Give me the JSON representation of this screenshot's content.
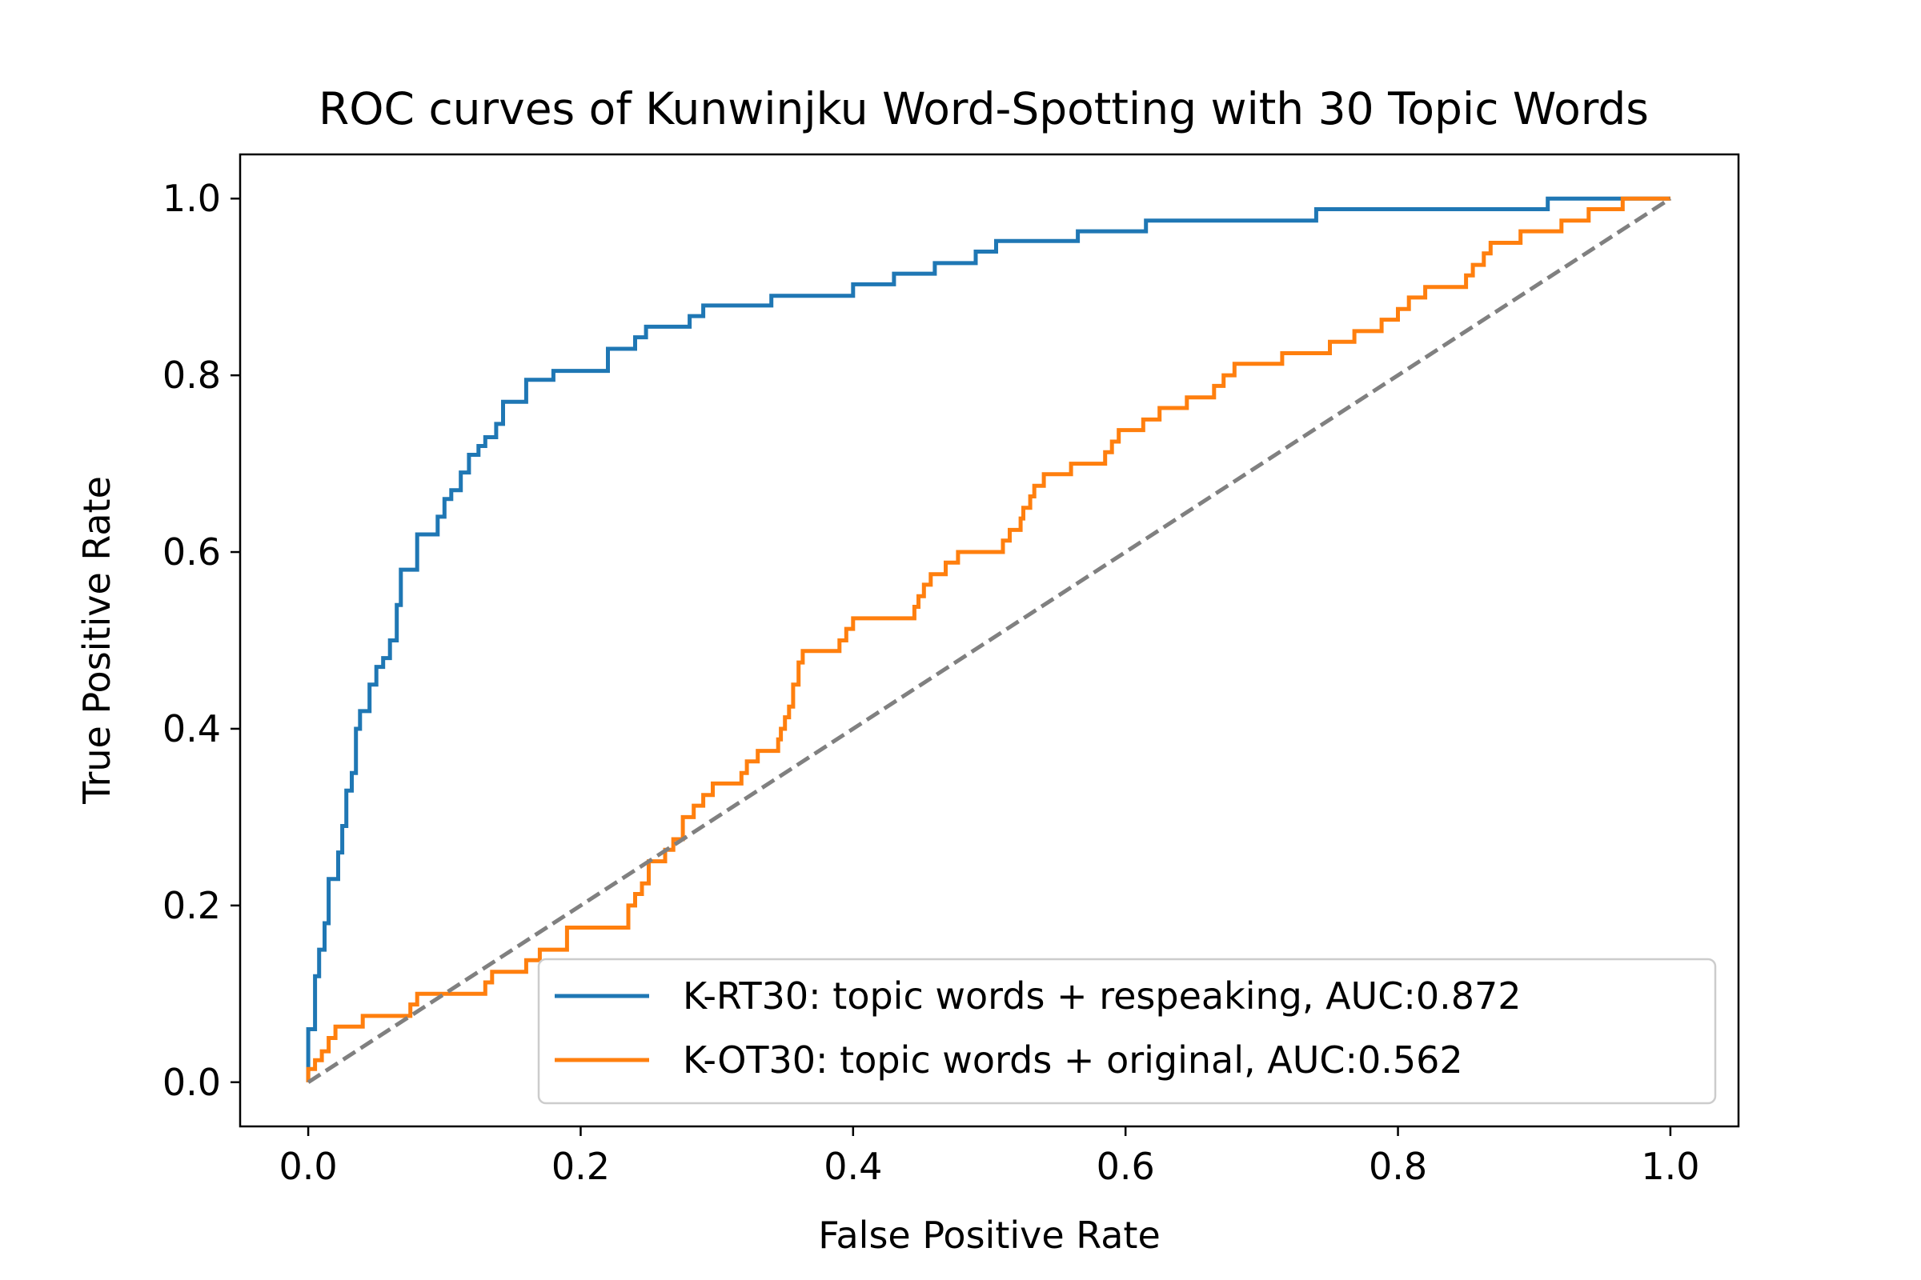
{
  "chart_data": {
    "type": "line",
    "title": "ROC curves of Kunwinjku Word-Spotting with 30 Topic Words",
    "xlabel": "False Positive Rate",
    "ylabel": "True Positive Rate",
    "xlim": [
      -0.05,
      1.05
    ],
    "ylim": [
      -0.05,
      1.05
    ],
    "xticks": [
      0.0,
      0.2,
      0.4,
      0.6,
      0.8,
      1.0
    ],
    "yticks": [
      0.0,
      0.2,
      0.4,
      0.6,
      0.8,
      1.0
    ],
    "xtick_labels": [
      "0.0",
      "0.2",
      "0.4",
      "0.6",
      "0.8",
      "1.0"
    ],
    "ytick_labels": [
      "0.0",
      "0.2",
      "0.4",
      "0.6",
      "0.8",
      "1.0"
    ],
    "grid": false,
    "legend_position": "lower-right",
    "series": [
      {
        "name": "K-RT30: topic words + respeaking, AUC:0.872",
        "color": "#1f77b4",
        "style": "solid",
        "points": [
          [
            0,
            0
          ],
          [
            0,
            0.06
          ],
          [
            0.005,
            0.06
          ],
          [
            0.005,
            0.12
          ],
          [
            0.008,
            0.12
          ],
          [
            0.008,
            0.15
          ],
          [
            0.012,
            0.15
          ],
          [
            0.012,
            0.18
          ],
          [
            0.015,
            0.18
          ],
          [
            0.015,
            0.23
          ],
          [
            0.022,
            0.23
          ],
          [
            0.022,
            0.26
          ],
          [
            0.025,
            0.26
          ],
          [
            0.025,
            0.29
          ],
          [
            0.028,
            0.29
          ],
          [
            0.028,
            0.33
          ],
          [
            0.032,
            0.33
          ],
          [
            0.032,
            0.35
          ],
          [
            0.035,
            0.35
          ],
          [
            0.035,
            0.4
          ],
          [
            0.038,
            0.4
          ],
          [
            0.038,
            0.42
          ],
          [
            0.045,
            0.42
          ],
          [
            0.045,
            0.45
          ],
          [
            0.05,
            0.45
          ],
          [
            0.05,
            0.47
          ],
          [
            0.055,
            0.47
          ],
          [
            0.055,
            0.48
          ],
          [
            0.06,
            0.48
          ],
          [
            0.06,
            0.5
          ],
          [
            0.065,
            0.5
          ],
          [
            0.065,
            0.54
          ],
          [
            0.068,
            0.54
          ],
          [
            0.068,
            0.58
          ],
          [
            0.08,
            0.58
          ],
          [
            0.08,
            0.62
          ],
          [
            0.095,
            0.62
          ],
          [
            0.095,
            0.64
          ],
          [
            0.1,
            0.64
          ],
          [
            0.1,
            0.66
          ],
          [
            0.105,
            0.66
          ],
          [
            0.105,
            0.67
          ],
          [
            0.112,
            0.67
          ],
          [
            0.112,
            0.69
          ],
          [
            0.118,
            0.69
          ],
          [
            0.118,
            0.71
          ],
          [
            0.125,
            0.71
          ],
          [
            0.125,
            0.72
          ],
          [
            0.13,
            0.72
          ],
          [
            0.13,
            0.73
          ],
          [
            0.138,
            0.73
          ],
          [
            0.138,
            0.745
          ],
          [
            0.143,
            0.745
          ],
          [
            0.143,
            0.77
          ],
          [
            0.16,
            0.77
          ],
          [
            0.16,
            0.795
          ],
          [
            0.18,
            0.795
          ],
          [
            0.18,
            0.805
          ],
          [
            0.22,
            0.805
          ],
          [
            0.22,
            0.83
          ],
          [
            0.24,
            0.83
          ],
          [
            0.24,
            0.843
          ],
          [
            0.248,
            0.843
          ],
          [
            0.248,
            0.855
          ],
          [
            0.28,
            0.855
          ],
          [
            0.28,
            0.867
          ],
          [
            0.29,
            0.867
          ],
          [
            0.29,
            0.879
          ],
          [
            0.34,
            0.879
          ],
          [
            0.34,
            0.89
          ],
          [
            0.4,
            0.89
          ],
          [
            0.4,
            0.903
          ],
          [
            0.43,
            0.903
          ],
          [
            0.43,
            0.915
          ],
          [
            0.46,
            0.915
          ],
          [
            0.46,
            0.927
          ],
          [
            0.49,
            0.927
          ],
          [
            0.49,
            0.94
          ],
          [
            0.505,
            0.94
          ],
          [
            0.505,
            0.952
          ],
          [
            0.565,
            0.952
          ],
          [
            0.565,
            0.963
          ],
          [
            0.615,
            0.963
          ],
          [
            0.615,
            0.975
          ],
          [
            0.74,
            0.975
          ],
          [
            0.74,
            0.988
          ],
          [
            0.91,
            0.988
          ],
          [
            0.91,
            1.0
          ],
          [
            1.0,
            1.0
          ]
        ]
      },
      {
        "name": "K-OT30: topic words + original, AUC:0.562",
        "color": "#ff7f0e",
        "style": "solid",
        "points": [
          [
            0,
            0
          ],
          [
            0,
            0.015
          ],
          [
            0.005,
            0.015
          ],
          [
            0.005,
            0.025
          ],
          [
            0.01,
            0.025
          ],
          [
            0.01,
            0.035
          ],
          [
            0.015,
            0.035
          ],
          [
            0.015,
            0.05
          ],
          [
            0.02,
            0.05
          ],
          [
            0.02,
            0.063
          ],
          [
            0.04,
            0.063
          ],
          [
            0.04,
            0.075
          ],
          [
            0.075,
            0.075
          ],
          [
            0.075,
            0.088
          ],
          [
            0.08,
            0.088
          ],
          [
            0.08,
            0.1
          ],
          [
            0.13,
            0.1
          ],
          [
            0.13,
            0.113
          ],
          [
            0.135,
            0.113
          ],
          [
            0.135,
            0.125
          ],
          [
            0.16,
            0.125
          ],
          [
            0.16,
            0.138
          ],
          [
            0.17,
            0.138
          ],
          [
            0.17,
            0.15
          ],
          [
            0.19,
            0.15
          ],
          [
            0.19,
            0.175
          ],
          [
            0.235,
            0.175
          ],
          [
            0.235,
            0.2
          ],
          [
            0.24,
            0.2
          ],
          [
            0.24,
            0.213
          ],
          [
            0.245,
            0.213
          ],
          [
            0.245,
            0.225
          ],
          [
            0.25,
            0.225
          ],
          [
            0.25,
            0.25
          ],
          [
            0.262,
            0.25
          ],
          [
            0.262,
            0.263
          ],
          [
            0.268,
            0.263
          ],
          [
            0.268,
            0.275
          ],
          [
            0.275,
            0.275
          ],
          [
            0.275,
            0.3
          ],
          [
            0.283,
            0.3
          ],
          [
            0.283,
            0.313
          ],
          [
            0.29,
            0.313
          ],
          [
            0.29,
            0.325
          ],
          [
            0.297,
            0.325
          ],
          [
            0.297,
            0.338
          ],
          [
            0.318,
            0.338
          ],
          [
            0.318,
            0.35
          ],
          [
            0.322,
            0.35
          ],
          [
            0.322,
            0.363
          ],
          [
            0.33,
            0.363
          ],
          [
            0.33,
            0.375
          ],
          [
            0.345,
            0.375
          ],
          [
            0.345,
            0.388
          ],
          [
            0.347,
            0.388
          ],
          [
            0.347,
            0.4
          ],
          [
            0.35,
            0.4
          ],
          [
            0.35,
            0.413
          ],
          [
            0.353,
            0.413
          ],
          [
            0.353,
            0.425
          ],
          [
            0.356,
            0.425
          ],
          [
            0.356,
            0.45
          ],
          [
            0.36,
            0.45
          ],
          [
            0.36,
            0.475
          ],
          [
            0.363,
            0.475
          ],
          [
            0.363,
            0.488
          ],
          [
            0.39,
            0.488
          ],
          [
            0.39,
            0.5
          ],
          [
            0.395,
            0.5
          ],
          [
            0.395,
            0.513
          ],
          [
            0.4,
            0.513
          ],
          [
            0.4,
            0.525
          ],
          [
            0.445,
            0.525
          ],
          [
            0.445,
            0.538
          ],
          [
            0.448,
            0.538
          ],
          [
            0.448,
            0.55
          ],
          [
            0.452,
            0.55
          ],
          [
            0.452,
            0.563
          ],
          [
            0.457,
            0.563
          ],
          [
            0.457,
            0.575
          ],
          [
            0.468,
            0.575
          ],
          [
            0.468,
            0.588
          ],
          [
            0.477,
            0.588
          ],
          [
            0.477,
            0.6
          ],
          [
            0.51,
            0.6
          ],
          [
            0.51,
            0.613
          ],
          [
            0.515,
            0.613
          ],
          [
            0.515,
            0.625
          ],
          [
            0.523,
            0.625
          ],
          [
            0.523,
            0.638
          ],
          [
            0.525,
            0.638
          ],
          [
            0.525,
            0.65
          ],
          [
            0.53,
            0.65
          ],
          [
            0.53,
            0.663
          ],
          [
            0.533,
            0.663
          ],
          [
            0.533,
            0.675
          ],
          [
            0.54,
            0.675
          ],
          [
            0.54,
            0.688
          ],
          [
            0.56,
            0.688
          ],
          [
            0.56,
            0.7
          ],
          [
            0.585,
            0.7
          ],
          [
            0.585,
            0.713
          ],
          [
            0.59,
            0.713
          ],
          [
            0.59,
            0.725
          ],
          [
            0.595,
            0.725
          ],
          [
            0.595,
            0.738
          ],
          [
            0.613,
            0.738
          ],
          [
            0.613,
            0.75
          ],
          [
            0.625,
            0.75
          ],
          [
            0.625,
            0.763
          ],
          [
            0.645,
            0.763
          ],
          [
            0.645,
            0.775
          ],
          [
            0.665,
            0.775
          ],
          [
            0.665,
            0.788
          ],
          [
            0.672,
            0.788
          ],
          [
            0.672,
            0.8
          ],
          [
            0.68,
            0.8
          ],
          [
            0.68,
            0.813
          ],
          [
            0.715,
            0.813
          ],
          [
            0.715,
            0.825
          ],
          [
            0.75,
            0.825
          ],
          [
            0.75,
            0.838
          ],
          [
            0.768,
            0.838
          ],
          [
            0.768,
            0.85
          ],
          [
            0.788,
            0.85
          ],
          [
            0.788,
            0.863
          ],
          [
            0.8,
            0.863
          ],
          [
            0.8,
            0.875
          ],
          [
            0.808,
            0.875
          ],
          [
            0.808,
            0.888
          ],
          [
            0.82,
            0.888
          ],
          [
            0.82,
            0.9
          ],
          [
            0.85,
            0.9
          ],
          [
            0.85,
            0.913
          ],
          [
            0.855,
            0.913
          ],
          [
            0.855,
            0.925
          ],
          [
            0.863,
            0.925
          ],
          [
            0.863,
            0.938
          ],
          [
            0.868,
            0.938
          ],
          [
            0.868,
            0.95
          ],
          [
            0.89,
            0.95
          ],
          [
            0.89,
            0.963
          ],
          [
            0.92,
            0.963
          ],
          [
            0.92,
            0.975
          ],
          [
            0.94,
            0.975
          ],
          [
            0.94,
            0.988
          ],
          [
            0.965,
            0.988
          ],
          [
            0.965,
            1.0
          ],
          [
            1.0,
            1.0
          ]
        ]
      },
      {
        "name": "",
        "color": "#808080",
        "style": "dashed",
        "points": [
          [
            0,
            0
          ],
          [
            1,
            1
          ]
        ]
      }
    ]
  }
}
